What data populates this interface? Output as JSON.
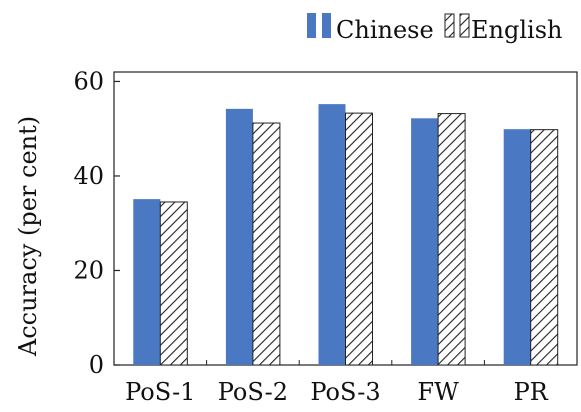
{
  "chart_data": {
    "type": "bar",
    "title": "",
    "xlabel": "",
    "ylabel": "Accuracy (per cent)",
    "categories": [
      "PoS-1",
      "PoS-2",
      "PoS-3",
      "FW",
      "PR"
    ],
    "series": [
      {
        "name": "Chinese",
        "values": [
          35.1,
          54.2,
          55.2,
          52.2,
          49.9
        ],
        "color": "#4a78c2",
        "fill": "solid"
      },
      {
        "name": "English",
        "values": [
          34.5,
          51.2,
          53.3,
          53.2,
          49.8
        ],
        "color": "#ffffff",
        "fill": "hatched"
      }
    ],
    "ylim": [
      0,
      62
    ],
    "yticks": [
      0,
      20,
      40,
      60
    ],
    "grid": false,
    "legend_position": "top-right"
  }
}
